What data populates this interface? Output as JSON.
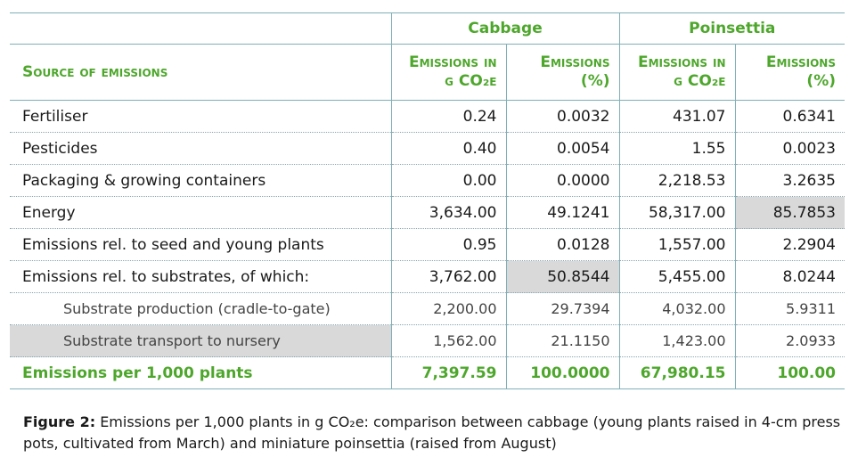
{
  "groups": {
    "cabbage": "Cabbage",
    "poinsettia": "Poinsettia"
  },
  "headers": {
    "source": "Source of emissions",
    "cab_g_line1": "Emissions in",
    "cab_g_line2": "g CO₂e",
    "cab_pct_line1": "Emissions",
    "cab_pct_line2": "(%)",
    "poi_g_line1": "Emissions in",
    "poi_g_line2": "g CO₂e",
    "poi_pct_line1": "Emissions",
    "poi_pct_line2": "(%)"
  },
  "rows": [
    {
      "label": "Fertiliser",
      "cab_g": "0.24",
      "cab_pct": "0.0032",
      "poi_g": "431.07",
      "poi_pct": "0.6341"
    },
    {
      "label": "Pesticides",
      "cab_g": "0.40",
      "cab_pct": "0.0054",
      "poi_g": "1.55",
      "poi_pct": "0.0023"
    },
    {
      "label": "Packaging & growing containers",
      "cab_g": "0.00",
      "cab_pct": "0.0000",
      "poi_g": "2,218.53",
      "poi_pct": "3.2635"
    },
    {
      "label": "Energy",
      "cab_g": "3,634.00",
      "cab_pct": "49.1241",
      "poi_g": "58,317.00",
      "poi_pct": "85.7853"
    },
    {
      "label": "Emissions rel. to seed and young plants",
      "cab_g": "0.95",
      "cab_pct": "0.0128",
      "poi_g": "1,557.00",
      "poi_pct": "2.2904"
    },
    {
      "label": "Emissions rel. to substrates, of which:",
      "cab_g": "3,762.00",
      "cab_pct": "50.8544",
      "poi_g": "5,455.00",
      "poi_pct": "8.0244"
    },
    {
      "label": "Substrate production (cradle-to-gate)",
      "cab_g": "2,200.00",
      "cab_pct": "29.7394",
      "poi_g": "4,032.00",
      "poi_pct": "5.9311"
    },
    {
      "label": "Substrate transport to nursery",
      "cab_g": "1,562.00",
      "cab_pct": "21.1150",
      "poi_g": "1,423.00",
      "poi_pct": "2.0933"
    }
  ],
  "total": {
    "label": "Emissions per 1,000 plants",
    "cab_g": "7,397.59",
    "cab_pct": "100.0000",
    "poi_g": "67,980.15",
    "poi_pct": "100.00"
  },
  "caption": {
    "figure": "Figure 2:",
    "text": " Emissions per 1,000 plants in g CO₂e: comparison between cabbage (young plants raised in 4-cm press pots, cultivated from March) and miniature poinsettia (raised from August)"
  },
  "colors": {
    "accent": "#4ea72c",
    "rule": "#7fb0b8",
    "highlight": "#d9d9d9"
  }
}
